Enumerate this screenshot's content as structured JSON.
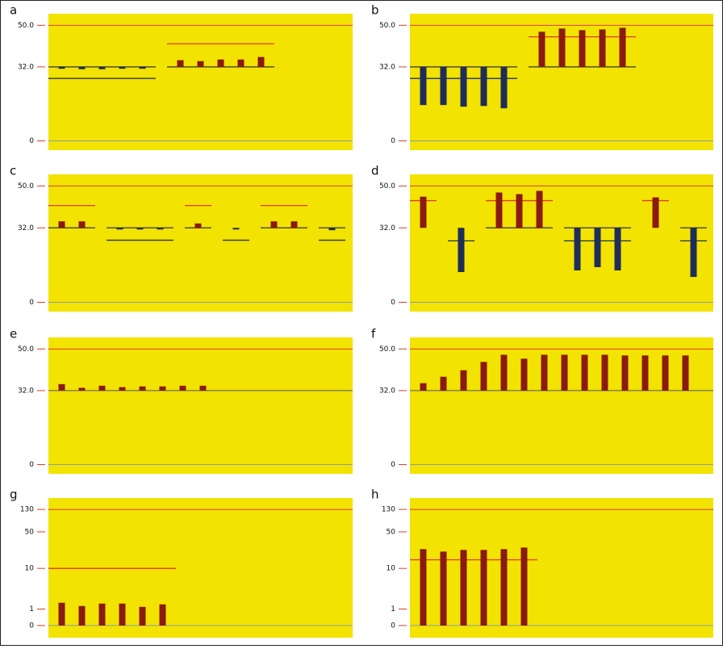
{
  "chart_data": [
    {
      "type": "bar",
      "label": "a",
      "ylim": [
        -4,
        55
      ],
      "yticks": [
        {
          "value": 50,
          "label": "50.0"
        },
        {
          "value": 32,
          "label": "32.0"
        },
        0
      ],
      "baseline": 32,
      "hlines": [
        {
          "value": 50,
          "color": "#e0382a"
        },
        {
          "value": 0,
          "color": "#8a9ea8"
        }
      ],
      "groups": [
        {
          "color": "#1f2d5a",
          "values": [
            31.2,
            31,
            31,
            31.2,
            31.2
          ],
          "refs": [
            {
              "value": 32,
              "color": "#333333"
            },
            {
              "value": 27,
              "color": "#333333"
            }
          ]
        },
        {
          "color": "#8b1a0f",
          "values": [
            34.9,
            34.5,
            35.2,
            35.2,
            36.3
          ],
          "refs": [
            {
              "value": 42,
              "color": "#e0382a"
            },
            {
              "value": 32,
              "color": "#333333"
            }
          ]
        }
      ]
    },
    {
      "type": "bar",
      "label": "b",
      "ylim": [
        -4,
        55
      ],
      "yticks": [
        {
          "value": 50,
          "label": "50.0"
        },
        {
          "value": 32,
          "label": "32.0"
        },
        0
      ],
      "baseline": 32,
      "hlines": [
        {
          "value": 50,
          "color": "#e0382a"
        },
        {
          "value": 0,
          "color": "#8a9ea8"
        }
      ],
      "groups": [
        {
          "color": "#1f2d5a",
          "values": [
            15.5,
            15.5,
            14.8,
            15.1,
            14.1
          ],
          "refs": [
            {
              "value": 32,
              "color": "#333333"
            },
            {
              "value": 27,
              "color": "#1f2d5a"
            }
          ]
        },
        {
          "color": "#8b1a0f",
          "values": [
            47.2,
            48.6,
            47.9,
            48.2,
            48.9
          ],
          "refs": [
            {
              "value": 45,
              "color": "#e0382a"
            },
            {
              "value": 32,
              "color": "#333333"
            }
          ]
        }
      ]
    },
    {
      "type": "bar",
      "label": "c",
      "ylim": [
        -4,
        55
      ],
      "yticks": [
        {
          "value": 50,
          "label": "50.0"
        },
        {
          "value": 32,
          "label": "32.0"
        },
        0
      ],
      "baseline": 32,
      "hlines": [
        {
          "value": 50,
          "color": "#e0382a"
        },
        {
          "value": 0,
          "color": "#8a9ea8"
        }
      ],
      "groups": [
        {
          "color": "#8b1a0f",
          "values": [
            34.8,
            34.8
          ],
          "refs": [
            {
              "value": 41.6,
              "color": "#e0382a"
            },
            {
              "value": 32,
              "color": "#333333"
            }
          ]
        },
        {
          "color": "#1f2d5a",
          "values": [
            31.3,
            31.3,
            31.3
          ],
          "refs": [
            {
              "value": 32,
              "color": "#333333"
            },
            {
              "value": 26.7,
              "color": "#333333"
            }
          ]
        },
        {
          "color": "#8b1a0f",
          "values": [
            33.9
          ],
          "refs": [
            {
              "value": 41.6,
              "color": "#e0382a"
            },
            {
              "value": 32,
              "color": "#333333"
            }
          ]
        },
        {
          "color": "#1f2d5a",
          "values": [
            31.3
          ],
          "refs": [
            {
              "value": 26.7,
              "color": "#333333"
            }
          ]
        },
        {
          "color": "#8b1a0f",
          "values": [
            34.8,
            34.8
          ],
          "refs": [
            {
              "value": 41.6,
              "color": "#e0382a"
            },
            {
              "value": 32,
              "color": "#333333"
            }
          ]
        },
        {
          "color": "#1f2d5a",
          "values": [
            31
          ],
          "refs": [
            {
              "value": 32,
              "color": "#333333"
            },
            {
              "value": 26.7,
              "color": "#333333"
            }
          ]
        }
      ]
    },
    {
      "type": "bar",
      "label": "d",
      "ylim": [
        -4,
        55
      ],
      "yticks": [
        {
          "value": 50,
          "label": "50.0"
        },
        {
          "value": 32,
          "label": "32.0"
        },
        0
      ],
      "baseline": 32,
      "hlines": [
        {
          "value": 50,
          "color": "#e0382a"
        },
        {
          "value": 0,
          "color": "#8a9ea8"
        }
      ],
      "groups": [
        {
          "color": "#8b1a0f",
          "values": [
            45.4
          ],
          "refs": [
            {
              "value": 43.7,
              "color": "#e0382a"
            }
          ]
        },
        {
          "color": "#1f2d5a",
          "values": [
            13
          ],
          "refs": [
            {
              "value": 26.4,
              "color": "#1f2d5a"
            }
          ]
        },
        {
          "color": "#8b1a0f",
          "values": [
            47.2,
            46.5,
            47.9
          ],
          "refs": [
            {
              "value": 43.7,
              "color": "#e0382a"
            },
            {
              "value": 32,
              "color": "#333333"
            }
          ]
        },
        {
          "color": "#1f2d5a",
          "values": [
            13.7,
            15.1,
            13.7
          ],
          "refs": [
            {
              "value": 32,
              "color": "#333333"
            },
            {
              "value": 26.4,
              "color": "#1f2d5a"
            }
          ]
        },
        {
          "color": "#8b1a0f",
          "values": [
            45.1
          ],
          "refs": [
            {
              "value": 43.7,
              "color": "#e0382a"
            }
          ]
        },
        {
          "color": "#1f2d5a",
          "values": [
            10.9
          ],
          "refs": [
            {
              "value": 32,
              "color": "#333333"
            },
            {
              "value": 26.4,
              "color": "#1f2d5a"
            }
          ]
        }
      ]
    },
    {
      "type": "bar",
      "label": "e",
      "ylim": [
        -4,
        55
      ],
      "yticks": [
        {
          "value": 50,
          "label": "50.0"
        },
        {
          "value": 32,
          "label": "32.0"
        },
        0
      ],
      "baseline": 32,
      "hlines": [
        {
          "value": 50,
          "color": "#e0382a"
        },
        {
          "value": 32,
          "color": "#555555"
        },
        {
          "value": 0,
          "color": "#8a9ea8"
        }
      ],
      "groups": [
        {
          "color": "#8b1a0f",
          "values": [
            34.8,
            33.2,
            34.1,
            33.5,
            33.8,
            33.8,
            34.1,
            34.1
          ],
          "refs": []
        }
      ]
    },
    {
      "type": "bar",
      "label": "f",
      "ylim": [
        -4,
        55
      ],
      "yticks": [
        {
          "value": 50,
          "label": "50.0"
        },
        {
          "value": 32,
          "label": "32.0"
        },
        0
      ],
      "baseline": 32,
      "hlines": [
        {
          "value": 50,
          "color": "#e0382a"
        },
        {
          "value": 32,
          "color": "#555555"
        },
        {
          "value": 0,
          "color": "#8a9ea8"
        }
      ],
      "groups": [
        {
          "color": "#8b1a0f",
          "values": [
            35.2,
            38,
            40.8,
            44.4,
            47.5,
            45.8,
            47.5,
            47.5,
            47.5,
            47.5,
            47.2,
            47.2,
            47.2,
            47.2
          ],
          "refs": []
        }
      ]
    },
    {
      "type": "bar",
      "label": "g",
      "yscale": "log1p",
      "ylim": [
        -0.4,
        210
      ],
      "yticks": [
        130,
        50,
        10,
        1,
        0
      ],
      "baseline": 0,
      "hlines": [
        {
          "value": 130,
          "color": "#e0382a"
        },
        {
          "value": 0,
          "color": "#8a9ea8"
        }
      ],
      "groups": [
        {
          "color": "#8b1a0f",
          "values": [
            1.6,
            1.27,
            1.51,
            1.51,
            1.19,
            1.43
          ],
          "refs": [
            {
              "value": 10,
              "color": "#e0382a"
            }
          ]
        }
      ]
    },
    {
      "type": "bar",
      "label": "h",
      "yscale": "log1p",
      "ylim": [
        -0.4,
        210
      ],
      "yticks": [
        130,
        50,
        10,
        1,
        0
      ],
      "baseline": 0,
      "hlines": [
        {
          "value": 130,
          "color": "#e0382a"
        },
        {
          "value": 0,
          "color": "#8a9ea8"
        }
      ],
      "groups": [
        {
          "color": "#8b1a0f",
          "values": [
            23.7,
            21.3,
            22.9,
            22.9,
            23.7,
            25.4
          ],
          "refs": [
            {
              "value": 14.8,
              "color": "#e0382a"
            }
          ]
        }
      ]
    }
  ]
}
